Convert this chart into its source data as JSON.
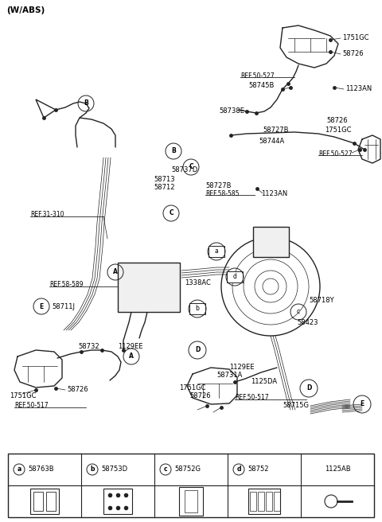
{
  "background_color": "#ffffff",
  "line_color": "#222222",
  "fig_width": 4.8,
  "fig_height": 6.56,
  "dpi": 100,
  "header": "(W/ABS)",
  "legend": {
    "cols": [
      {
        "circle": "a",
        "part": "58763B"
      },
      {
        "circle": "b",
        "part": "58753D"
      },
      {
        "circle": "c",
        "part": "58752G"
      },
      {
        "circle": "d",
        "part": "58752"
      },
      {
        "part": "1125AB"
      }
    ]
  }
}
